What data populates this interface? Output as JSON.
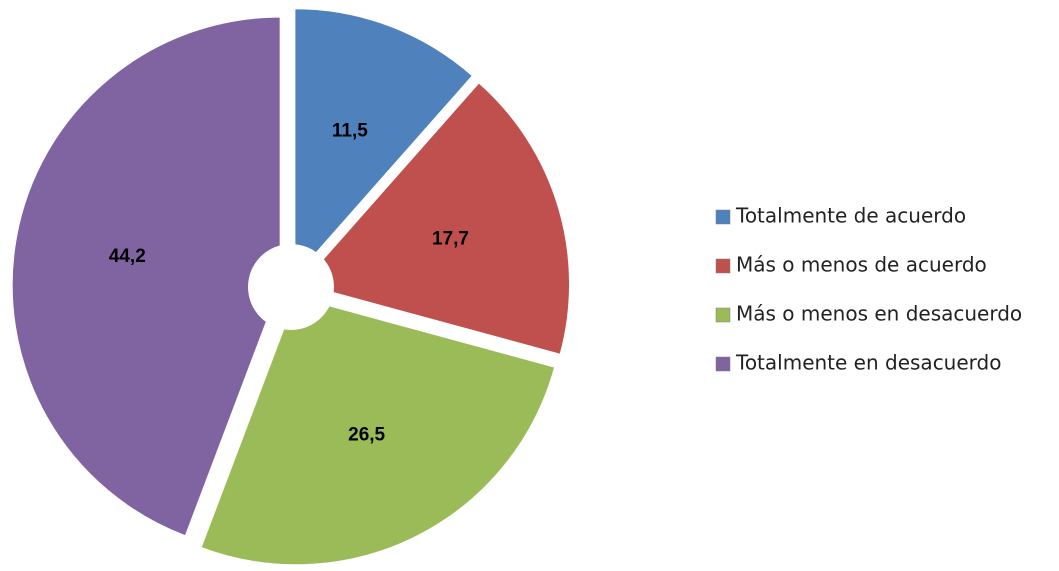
{
  "chart_data": {
    "type": "doughnut",
    "categories": [
      "Totalmente de acuerdo",
      "Más o menos de acuerdo",
      "Más o menos en desacuerdo",
      "Totalmente en desacuerdo"
    ],
    "values": [
      11.5,
      17.7,
      26.5,
      44.2
    ],
    "value_labels": [
      "11,5",
      "17,7",
      "26,5",
      "44,2"
    ],
    "colors": [
      "#4f81bd",
      "#c0504d",
      "#9bbb59",
      "#8064a2"
    ],
    "legend": "right"
  }
}
